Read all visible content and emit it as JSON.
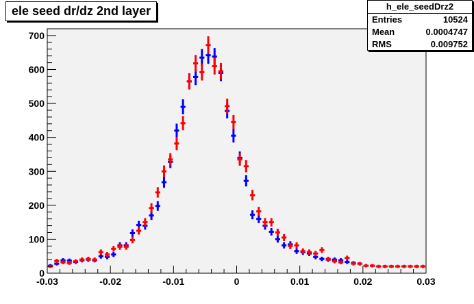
{
  "title": "ele seed dr/dz 2nd layer",
  "stats": {
    "name": "h_ele_seedDrz2",
    "entries_label": "Entries",
    "entries": "10524",
    "mean_label": "Mean",
    "mean": "0.0004747",
    "rms_label": "RMS",
    "rms": "0.009752"
  },
  "chart_data": {
    "type": "scatter",
    "title": "ele seed dr/dz 2nd layer",
    "xlabel": "",
    "ylabel": "",
    "xlim": [
      -0.03,
      0.03
    ],
    "ylim": [
      0,
      720
    ],
    "x_ticks": [
      -0.03,
      -0.02,
      -0.01,
      0,
      0.01,
      0.02,
      0.03
    ],
    "x_tick_labels": [
      "-0.03",
      "-0.02",
      "-0.01",
      "0",
      "0.01",
      "0.02",
      "0.03"
    ],
    "y_ticks": [
      0,
      100,
      200,
      300,
      400,
      500,
      600,
      700
    ],
    "y_tick_labels": [
      "0",
      "100",
      "200",
      "300",
      "400",
      "500",
      "600",
      "700"
    ],
    "bin_width": 0.001,
    "x": [
      -0.0295,
      -0.0285,
      -0.0275,
      -0.0265,
      -0.0255,
      -0.0245,
      -0.0235,
      -0.0225,
      -0.0215,
      -0.0205,
      -0.0195,
      -0.0185,
      -0.0175,
      -0.0165,
      -0.0155,
      -0.0145,
      -0.0135,
      -0.0125,
      -0.0115,
      -0.0105,
      -0.0095,
      -0.0085,
      -0.0075,
      -0.0065,
      -0.0055,
      -0.0045,
      -0.0035,
      -0.0025,
      -0.0015,
      -0.0005,
      0.0005,
      0.0015,
      0.0025,
      0.0035,
      0.0045,
      0.0055,
      0.0065,
      0.0075,
      0.0085,
      0.0095,
      0.0105,
      0.0115,
      0.0125,
      0.0135,
      0.0145,
      0.0155,
      0.0165,
      0.0175,
      0.0185,
      0.0195,
      0.0205,
      0.0215,
      0.0225,
      0.0235,
      0.0245,
      0.0255,
      0.0265,
      0.0275,
      0.0285,
      0.0295
    ],
    "series": [
      {
        "color": "#0000ff",
        "values": [
          22,
          28,
          38,
          37,
          33,
          38,
          40,
          38,
          50,
          48,
          55,
          82,
          82,
          118,
          142,
          140,
          170,
          198,
          268,
          328,
          420,
          490,
          565,
          578,
          635,
          642,
          638,
          590,
          478,
          405,
          340,
          272,
          172,
          160,
          140,
          122,
          100,
          82,
          85,
          65,
          62,
          58,
          48,
          42,
          40,
          40,
          38,
          33,
          30,
          28,
          22,
          22,
          20,
          20,
          20,
          20,
          20,
          20,
          20,
          20
        ]
      },
      {
        "color": "#ff0000",
        "values": [
          20,
          36,
          32,
          30,
          35,
          40,
          42,
          40,
          62,
          55,
          72,
          78,
          78,
          98,
          125,
          150,
          192,
          238,
          300,
          335,
          382,
          442,
          565,
          618,
          592,
          672,
          610,
          595,
          492,
          445,
          335,
          315,
          230,
          182,
          150,
          150,
          120,
          105,
          80,
          82,
          65,
          62,
          58,
          68,
          42,
          35,
          32,
          45,
          28,
          28,
          22,
          22,
          20,
          20,
          20,
          20,
          20,
          20,
          20,
          20
        ]
      }
    ]
  }
}
